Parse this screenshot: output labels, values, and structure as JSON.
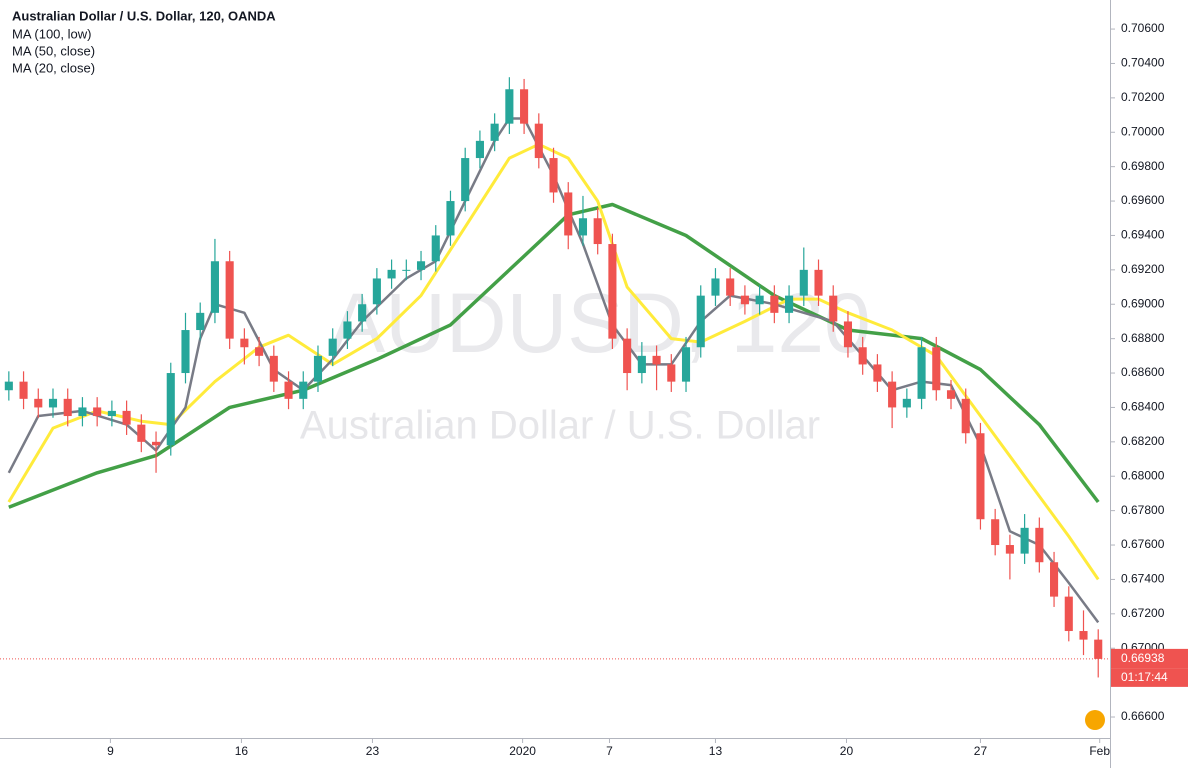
{
  "chart_data": {
    "type": "candlestick",
    "title": "Australian Dollar / U.S. Dollar, 120, OANDA",
    "watermark": {
      "symbol": "AUDUSD, 120",
      "description": "Australian Dollar / U.S. Dollar"
    },
    "xlim": [
      -0.6,
      74.8
    ],
    "xticks": [
      {
        "value": 6.9,
        "label": "9"
      },
      {
        "value": 15.8,
        "label": "16"
      },
      {
        "value": 24.7,
        "label": "23"
      },
      {
        "value": 34.9,
        "label": "2020"
      },
      {
        "value": 40.8,
        "label": "7"
      },
      {
        "value": 48,
        "label": "13"
      },
      {
        "value": 56.9,
        "label": "20"
      },
      {
        "value": 66,
        "label": "27"
      },
      {
        "value": 74.1,
        "label": "Feb"
      }
    ],
    "ylim": [
      0.66478,
      0.70769
    ],
    "yticks": [
      {
        "value": 0.666,
        "label": "0.66600"
      },
      {
        "value": 0.67,
        "label": "0.67000"
      },
      {
        "value": 0.672,
        "label": "0.67200"
      },
      {
        "value": 0.674,
        "label": "0.67400"
      },
      {
        "value": 0.676,
        "label": "0.67600"
      },
      {
        "value": 0.678,
        "label": "0.67800"
      },
      {
        "value": 0.68,
        "label": "0.68000"
      },
      {
        "value": 0.682,
        "label": "0.68200"
      },
      {
        "value": 0.684,
        "label": "0.68400"
      },
      {
        "value": 0.686,
        "label": "0.68600"
      },
      {
        "value": 0.688,
        "label": "0.68800"
      },
      {
        "value": 0.69,
        "label": "0.69000"
      },
      {
        "value": 0.692,
        "label": "0.69200"
      },
      {
        "value": 0.694,
        "label": "0.69400"
      },
      {
        "value": 0.696,
        "label": "0.69600"
      },
      {
        "value": 0.698,
        "label": "0.69800"
      },
      {
        "value": 0.7,
        "label": "0.70000"
      },
      {
        "value": 0.702,
        "label": "0.70200"
      },
      {
        "value": 0.704,
        "label": "0.70400"
      },
      {
        "value": 0.706,
        "label": "0.70600"
      }
    ],
    "grid": false,
    "last_price": 0.66938,
    "last_price_color": "#ef5350",
    "countdown": "01:17:44",
    "series": [
      {
        "kind": "candles",
        "up_color": "#26a69a",
        "down_color": "#ef5350",
        "open": [
          0.685,
          0.6855,
          0.6845,
          0.684,
          0.6845,
          0.6835,
          0.684,
          0.6835,
          0.6838,
          0.683,
          0.682,
          0.6818,
          0.686,
          0.6885,
          0.6895,
          0.6925,
          0.688,
          0.6875,
          0.687,
          0.6855,
          0.6845,
          0.6855,
          0.687,
          0.688,
          0.689,
          0.69,
          0.6915,
          0.692,
          0.692,
          0.6925,
          0.694,
          0.696,
          0.6985,
          0.6995,
          0.7005,
          0.7025,
          0.7005,
          0.6985,
          0.6965,
          0.694,
          0.695,
          0.6935,
          0.688,
          0.686,
          0.687,
          0.6865,
          0.6855,
          0.6875,
          0.6905,
          0.6915,
          0.6905,
          0.69,
          0.6905,
          0.6895,
          0.6905,
          0.692,
          0.6905,
          0.689,
          0.6875,
          0.6865,
          0.6855,
          0.684,
          0.6845,
          0.6875,
          0.685,
          0.6845,
          0.6825,
          0.6775,
          0.676,
          0.6755,
          0.677,
          0.675,
          0.673,
          0.671,
          0.6705
        ],
        "high": [
          0.6861,
          0.6861,
          0.6851,
          0.6851,
          0.6851,
          0.6846,
          0.6846,
          0.6844,
          0.6844,
          0.6836,
          0.6826,
          0.6866,
          0.6895,
          0.6901,
          0.6938,
          0.6931,
          0.6886,
          0.6881,
          0.6876,
          0.6861,
          0.6861,
          0.6876,
          0.6886,
          0.6896,
          0.6906,
          0.6921,
          0.6926,
          0.6926,
          0.6931,
          0.6946,
          0.6966,
          0.6991,
          0.7001,
          0.7011,
          0.7032,
          0.7031,
          0.7011,
          0.6991,
          0.6971,
          0.6963,
          0.6956,
          0.6941,
          0.6886,
          0.6878,
          0.6876,
          0.6871,
          0.6881,
          0.6911,
          0.6921,
          0.6921,
          0.6911,
          0.6911,
          0.6911,
          0.6911,
          0.6933,
          0.6926,
          0.6911,
          0.6896,
          0.6881,
          0.6871,
          0.6861,
          0.6851,
          0.6881,
          0.6881,
          0.6856,
          0.6851,
          0.6831,
          0.6781,
          0.6766,
          0.6778,
          0.6776,
          0.6756,
          0.6736,
          0.6722,
          0.6711
        ],
        "low": [
          0.6844,
          0.6839,
          0.6834,
          0.6834,
          0.6829,
          0.6829,
          0.6829,
          0.6829,
          0.6824,
          0.6814,
          0.6802,
          0.6812,
          0.6854,
          0.6879,
          0.6889,
          0.6874,
          0.6865,
          0.6864,
          0.6849,
          0.6839,
          0.6839,
          0.6849,
          0.6864,
          0.6874,
          0.6884,
          0.6894,
          0.6909,
          0.6914,
          0.6914,
          0.6919,
          0.6934,
          0.6954,
          0.6979,
          0.6989,
          0.6999,
          0.6999,
          0.6979,
          0.6959,
          0.6932,
          0.6934,
          0.6929,
          0.6874,
          0.685,
          0.6854,
          0.685,
          0.6849,
          0.6849,
          0.6869,
          0.6899,
          0.6899,
          0.6894,
          0.6894,
          0.6889,
          0.6889,
          0.6899,
          0.6899,
          0.6884,
          0.6869,
          0.6859,
          0.6849,
          0.6828,
          0.6834,
          0.6839,
          0.6844,
          0.6839,
          0.6819,
          0.6769,
          0.6754,
          0.674,
          0.6749,
          0.6744,
          0.6724,
          0.6704,
          0.6696,
          0.6683
        ],
        "close": [
          0.6855,
          0.6845,
          0.684,
          0.6845,
          0.6835,
          0.684,
          0.6835,
          0.6838,
          0.683,
          0.682,
          0.6818,
          0.686,
          0.6885,
          0.6895,
          0.6925,
          0.688,
          0.6875,
          0.687,
          0.6855,
          0.6845,
          0.6855,
          0.687,
          0.688,
          0.689,
          0.69,
          0.6915,
          0.692,
          0.692,
          0.6925,
          0.694,
          0.696,
          0.6985,
          0.6995,
          0.7005,
          0.7025,
          0.7005,
          0.6985,
          0.6965,
          0.694,
          0.695,
          0.6935,
          0.688,
          0.686,
          0.687,
          0.6865,
          0.6855,
          0.6875,
          0.6905,
          0.6915,
          0.6905,
          0.69,
          0.6905,
          0.6895,
          0.6905,
          0.692,
          0.6905,
          0.689,
          0.6875,
          0.6865,
          0.6855,
          0.684,
          0.6845,
          0.6875,
          0.685,
          0.6845,
          0.6825,
          0.6775,
          0.676,
          0.6755,
          0.677,
          0.675,
          0.673,
          0.671,
          0.6705,
          0.66938
        ]
      },
      {
        "kind": "line",
        "name": "MA (100, low)",
        "color": "#43a047",
        "width": 3.5,
        "x": [
          0,
          6,
          10,
          15,
          20,
          25,
          30,
          35,
          38,
          41,
          46,
          52,
          57,
          62,
          66,
          70,
          74
        ],
        "values": [
          0.6782,
          0.6802,
          0.6812,
          0.684,
          0.685,
          0.6868,
          0.6888,
          0.6928,
          0.6952,
          0.6958,
          0.694,
          0.6905,
          0.6885,
          0.688,
          0.6862,
          0.683,
          0.6785
        ]
      },
      {
        "kind": "line",
        "name": "MA (50, close)",
        "color": "#ffeb3b",
        "width": 3,
        "x": [
          0,
          3,
          6,
          9,
          11,
          14,
          17,
          19,
          22,
          25,
          28,
          31,
          34,
          36,
          38,
          40,
          42,
          45,
          47,
          50,
          53,
          55,
          57,
          60,
          63,
          66,
          69,
          72,
          74
        ],
        "values": [
          0.6785,
          0.6828,
          0.6838,
          0.6832,
          0.683,
          0.6855,
          0.6875,
          0.6882,
          0.6865,
          0.688,
          0.6905,
          0.6945,
          0.6985,
          0.6993,
          0.6985,
          0.696,
          0.691,
          0.688,
          0.6878,
          0.689,
          0.6903,
          0.6903,
          0.6895,
          0.6885,
          0.687,
          0.6835,
          0.68,
          0.6765,
          0.674
        ]
      },
      {
        "kind": "line",
        "name": "MA (20, close)",
        "color": "#787b86",
        "width": 2.5,
        "x": [
          0,
          2,
          5,
          8,
          10,
          12,
          13,
          14,
          16,
          18,
          20,
          22,
          24,
          27,
          29,
          31,
          33,
          34,
          35,
          37,
          39,
          41,
          43,
          45,
          47,
          49,
          52,
          54,
          56,
          58,
          60,
          62,
          64,
          66,
          68,
          70,
          72,
          74
        ],
        "values": [
          0.6802,
          0.6835,
          0.6838,
          0.683,
          0.6815,
          0.684,
          0.688,
          0.69,
          0.6895,
          0.6862,
          0.685,
          0.6868,
          0.689,
          0.6915,
          0.6925,
          0.696,
          0.6995,
          0.7008,
          0.7008,
          0.6975,
          0.6935,
          0.6888,
          0.6865,
          0.6865,
          0.689,
          0.6905,
          0.69,
          0.6895,
          0.689,
          0.687,
          0.685,
          0.6855,
          0.6853,
          0.6818,
          0.6768,
          0.676,
          0.6738,
          0.6715
        ]
      }
    ]
  }
}
